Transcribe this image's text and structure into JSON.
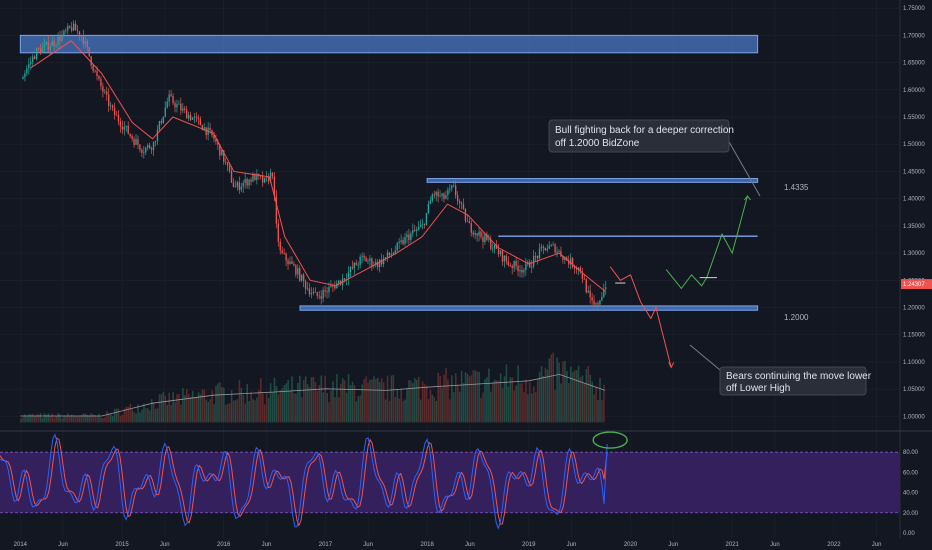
{
  "colors": {
    "background": "#131722",
    "grid": "#1e222d",
    "axis_text": "#b2b5be",
    "candle_up": "#26a69a",
    "candle_down": "#ef5350",
    "ma_line": "#ef5350",
    "zone_fill": "#4a78c4",
    "zone_stroke": "#7da4ea",
    "bull_path": "#4caf50",
    "bear_path": "#ef5350",
    "volume_ma": "#9598a1",
    "osc_fill": "#3a2266",
    "osc_k": "#2962ff",
    "osc_d": "#ef5350",
    "osc_bands": "#7e57c2",
    "highlight_ellipse": "#4caf50",
    "price_tag": "#ef5350",
    "note_bg": "#2a2e39",
    "note_border": "#434651"
  },
  "chart_data": [
    {
      "type": "candlestick",
      "instrument_hint": "weekly price chart",
      "ylim": [
        0.975,
        1.765
      ],
      "price_axis_labels": [
        "1.75000",
        "1.70000",
        "1.65000",
        "1.60000",
        "1.55000",
        "1.50000",
        "1.45000",
        "1.40000",
        "1.35000",
        "1.30000",
        "1.25000",
        "1.20000",
        "1.15000",
        "1.10000",
        "1.05000",
        "1.00000"
      ],
      "x_tick_labels": [
        "2014",
        "Jun",
        "2015",
        "Jun",
        "2016",
        "Jun",
        "2017",
        "Jun",
        "2018",
        "Jun",
        "2019",
        "Jun",
        "2020",
        "Jun",
        "2021",
        "Jun",
        "2022",
        "Jun"
      ],
      "last_price_label": "1.24307",
      "last_price": 1.24307,
      "price_path": [
        [
          2014.0,
          1.62
        ],
        [
          2014.15,
          1.67
        ],
        [
          2014.35,
          1.69
        ],
        [
          2014.5,
          1.715
        ],
        [
          2014.6,
          1.7
        ],
        [
          2014.75,
          1.62
        ],
        [
          2014.9,
          1.56
        ],
        [
          2015.1,
          1.51
        ],
        [
          2015.2,
          1.49
        ],
        [
          2015.3,
          1.5
        ],
        [
          2015.45,
          1.585
        ],
        [
          2015.6,
          1.56
        ],
        [
          2015.75,
          1.54
        ],
        [
          2015.9,
          1.51
        ],
        [
          2016.0,
          1.47
        ],
        [
          2016.1,
          1.42
        ],
        [
          2016.3,
          1.44
        ],
        [
          2016.4,
          1.43
        ],
        [
          2016.48,
          1.45
        ],
        [
          2016.5,
          1.36
        ],
        [
          2016.55,
          1.3
        ],
        [
          2016.7,
          1.27
        ],
        [
          2016.8,
          1.24
        ],
        [
          2016.9,
          1.22
        ],
        [
          2017.0,
          1.23
        ],
        [
          2017.15,
          1.25
        ],
        [
          2017.35,
          1.29
        ],
        [
          2017.5,
          1.28
        ],
        [
          2017.65,
          1.3
        ],
        [
          2017.8,
          1.33
        ],
        [
          2017.95,
          1.35
        ],
        [
          2018.05,
          1.41
        ],
        [
          2018.15,
          1.4
        ],
        [
          2018.25,
          1.42
        ],
        [
          2018.4,
          1.35
        ],
        [
          2018.6,
          1.32
        ],
        [
          2018.8,
          1.28
        ],
        [
          2018.95,
          1.27
        ],
        [
          2019.05,
          1.29
        ],
        [
          2019.15,
          1.31
        ],
        [
          2019.25,
          1.31
        ],
        [
          2019.35,
          1.29
        ],
        [
          2019.5,
          1.27
        ],
        [
          2019.6,
          1.21
        ],
        [
          2019.65,
          1.2
        ],
        [
          2019.7,
          1.22
        ],
        [
          2019.75,
          1.24307
        ]
      ],
      "ma_path": [
        [
          2014.1,
          1.64
        ],
        [
          2014.5,
          1.69
        ],
        [
          2014.8,
          1.63
        ],
        [
          2015.1,
          1.54
        ],
        [
          2015.3,
          1.51
        ],
        [
          2015.5,
          1.55
        ],
        [
          2015.9,
          1.52
        ],
        [
          2016.1,
          1.45
        ],
        [
          2016.45,
          1.44
        ],
        [
          2016.6,
          1.33
        ],
        [
          2016.85,
          1.25
        ],
        [
          2017.1,
          1.24
        ],
        [
          2017.4,
          1.27
        ],
        [
          2017.7,
          1.3
        ],
        [
          2017.95,
          1.33
        ],
        [
          2018.2,
          1.39
        ],
        [
          2018.4,
          1.37
        ],
        [
          2018.7,
          1.31
        ],
        [
          2019.0,
          1.28
        ],
        [
          2019.3,
          1.3
        ],
        [
          2019.55,
          1.26
        ],
        [
          2019.75,
          1.23
        ]
      ]
    },
    {
      "type": "histogram",
      "name": "volume",
      "note": "volume bars drawn along the bottom of the price pane with a moving average overlay",
      "ma_path": [
        [
          2014.0,
          0.08
        ],
        [
          2014.8,
          0.08
        ],
        [
          2015.3,
          0.24
        ],
        [
          2015.9,
          0.34
        ],
        [
          2016.5,
          0.38
        ],
        [
          2017.0,
          0.42
        ],
        [
          2017.6,
          0.4
        ],
        [
          2018.0,
          0.44
        ],
        [
          2018.5,
          0.48
        ],
        [
          2019.0,
          0.52
        ],
        [
          2019.3,
          0.6
        ],
        [
          2019.75,
          0.4
        ]
      ]
    },
    {
      "type": "line",
      "name": "oscillator",
      "ylim": [
        -5,
        100
      ],
      "tick_labels": [
        "80.00",
        "60.00",
        "40.00",
        "20.00",
        "0.00"
      ],
      "bands": [
        20,
        80
      ],
      "last_value_note": "K line crossing up toward 80, highlighted by green ellipse"
    }
  ],
  "annotations": {
    "upper_level": "1.4335",
    "lower_level": "1.2000",
    "bull_note_line1": "Bull fighting back for a deeper correction",
    "bull_note_line2": "off 1.2000 BidZone",
    "bear_note_line1": "Bears continuing the move lower",
    "bear_note_line2": "off Lower High"
  },
  "zones": {
    "top_supply": {
      "from_year": 2014.0,
      "to_year": 2021.25,
      "high": 1.7,
      "low": 1.668
    },
    "upper_resistance": {
      "from_year": 2018.0,
      "to_year": 2021.25,
      "high": 1.437,
      "low": 1.43
    },
    "mid_resistance": {
      "from_year": 2018.7,
      "to_year": 2021.25,
      "price": 1.331
    },
    "bidzone": {
      "from_year": 2016.75,
      "to_year": 2021.25,
      "high": 1.203,
      "low": 1.195
    }
  },
  "projections": {
    "bear_path": [
      [
        2019.8,
        1.275
      ],
      [
        2019.9,
        1.25
      ],
      [
        2020.0,
        1.26
      ],
      [
        2020.1,
        1.21
      ],
      [
        2020.2,
        1.18
      ],
      [
        2020.25,
        1.2
      ],
      [
        2020.4,
        1.09
      ]
    ],
    "bull_path": [
      [
        2020.35,
        1.27
      ],
      [
        2020.5,
        1.235
      ],
      [
        2020.6,
        1.26
      ],
      [
        2020.7,
        1.24
      ],
      [
        2020.75,
        1.255
      ],
      [
        2020.9,
        1.335
      ],
      [
        2021.0,
        1.3
      ],
      [
        2021.15,
        1.405
      ]
    ],
    "neutral_marks": [
      [
        2019.85,
        2019.95,
        1.245
      ],
      [
        2020.68,
        2020.85,
        1.255
      ]
    ]
  }
}
